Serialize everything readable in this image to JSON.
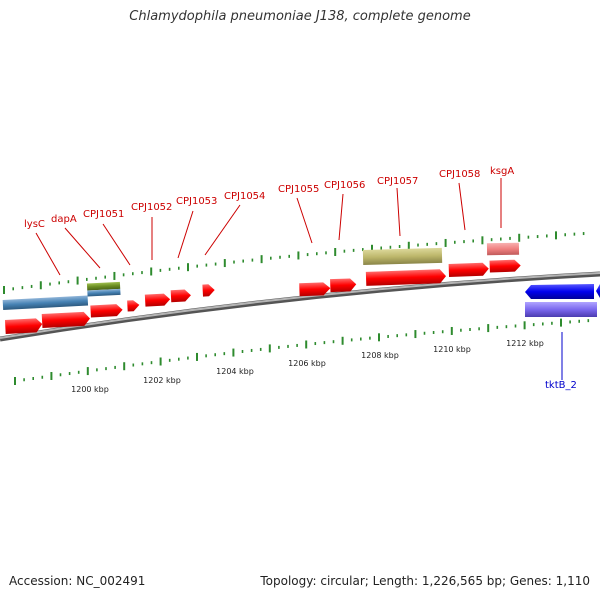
{
  "title": "Chlamydophila pneumoniae J138, complete genome",
  "accession": "Accession: NC_002491",
  "summary": "Topology: circular; Length: 1,226,565 bp; Genes: 1,110",
  "colors": {
    "forward_gene": "#ff0000",
    "reverse_gene": "#0000ee",
    "tick": "#2e8b2e",
    "backbone": "#8a8a8a",
    "gene_label": "#cc0000",
    "reverse_label": "#0000cc",
    "feature_blue": "#4682b4",
    "feature_green": "#6b8e23",
    "feature_khaki": "#bdb76b",
    "feature_pink": "#f08080",
    "feature_purple": "#7b68ee"
  },
  "gene_labels": [
    "lysC",
    "dapA",
    "CPJ1051",
    "CPJ1052",
    "CPJ1053",
    "CPJ1054",
    "CPJ1055",
    "CPJ1056",
    "CPJ1057",
    "CPJ1058",
    "ksgA"
  ],
  "reverse_labels": [
    "tktB_2"
  ],
  "scale_labels": [
    "1200 kbp",
    "1202 kbp",
    "1204 kbp",
    "1206 kbp",
    "1208 kbp",
    "1210 kbp",
    "1212 kbp"
  ]
}
